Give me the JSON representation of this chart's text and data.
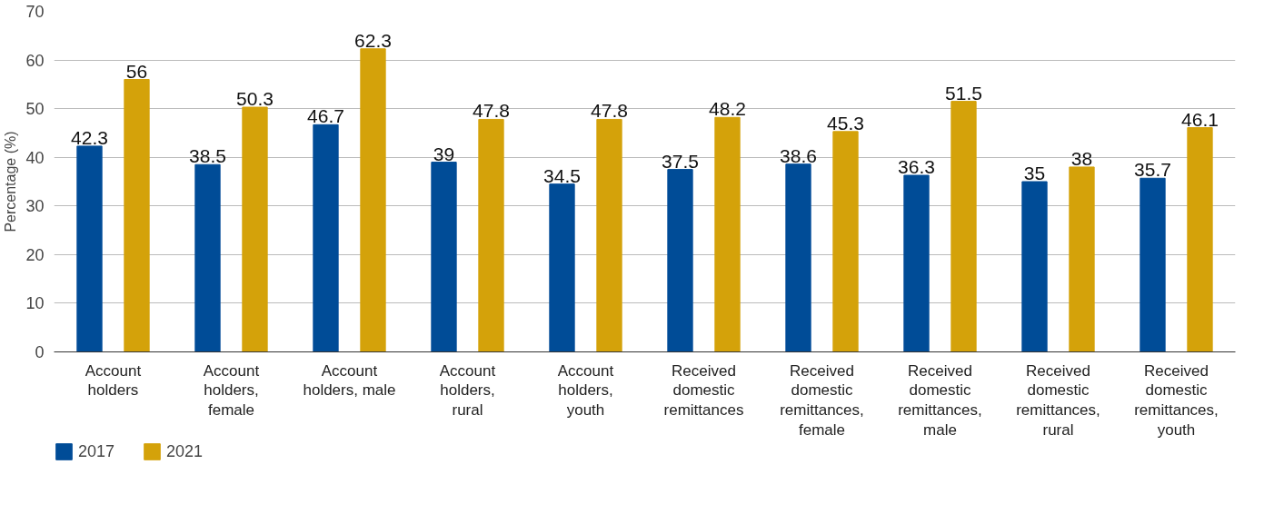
{
  "chart_data": {
    "type": "bar",
    "ylabel": "Percentage (%)",
    "categories": [
      "Account holders",
      "Account holders, female",
      "Account holders, male",
      "Account holders, rural",
      "Account holders, youth",
      "Received domestic remittances",
      "Received domestic remittances, female",
      "Received domestic remittances, male",
      "Received domestic remittances, rural",
      "Received domestic remittances, youth"
    ],
    "series": [
      {
        "name": "2017",
        "color": "#004c97",
        "values": [
          42.3,
          38.5,
          46.7,
          39,
          34.5,
          37.5,
          38.6,
          36.3,
          35,
          35.7
        ]
      },
      {
        "name": "2021",
        "color": "#d4a20a",
        "values": [
          56,
          50.3,
          62.3,
          47.8,
          47.8,
          48.2,
          45.3,
          51.5,
          38,
          46.1
        ]
      }
    ],
    "ylim": [
      0,
      70
    ],
    "yticks": [
      0,
      10,
      20,
      30,
      40,
      50,
      60,
      70
    ],
    "grid": "y",
    "legend": "bottom left",
    "data_labels": true
  }
}
